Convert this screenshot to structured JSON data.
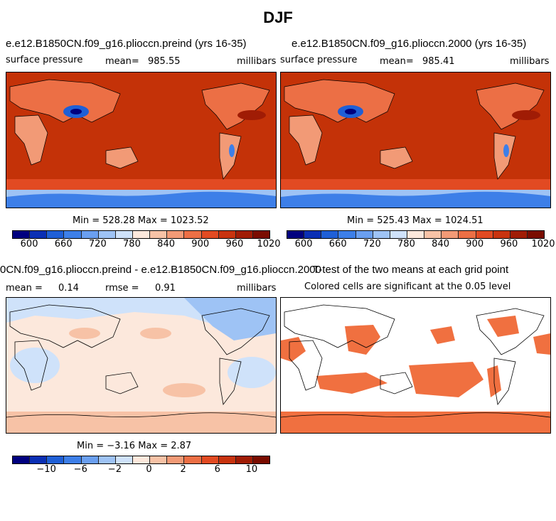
{
  "figure_title": "DJF",
  "chart_data": [
    {
      "type": "heatmap",
      "title": "e.e12.B1850CN.f09_g16.plioccn.preind (yrs 16-35)",
      "variable": "surface pressure",
      "mean_label": "mean=",
      "mean": "985.55",
      "units": "millibars",
      "stats": "Min = 528.28 Max = 1023.52",
      "min": 528.28,
      "max": 1023.52,
      "colorbar_ticks": [
        "600",
        "660",
        "720",
        "780",
        "840",
        "900",
        "960",
        "1020"
      ]
    },
    {
      "type": "heatmap",
      "title": "e.e12.B1850CN.f09_g16.plioccn.2000 (yrs 16-35)",
      "variable": "surface pressure",
      "mean_label": "mean=",
      "mean": "985.41",
      "units": "millibars",
      "stats": "Min = 525.43 Max = 1024.51",
      "min": 525.43,
      "max": 1024.51,
      "colorbar_ticks": [
        "600",
        "660",
        "720",
        "780",
        "840",
        "900",
        "960",
        "1020"
      ]
    },
    {
      "type": "heatmap",
      "title": "0CN.f09_g16.plioccn.preind - e.e12.B1850CN.f09_g16.plioccn.2000",
      "mean_label": "mean =",
      "mean": "0.14",
      "rmse_label": "rmse =",
      "rmse": "0.91",
      "units": "millibars",
      "stats": "Min = −3.16 Max = 2.87",
      "min": -3.16,
      "max": 2.87,
      "colorbar_ticks": [
        "−10",
        "−6",
        "−2",
        "0",
        "2",
        "6",
        "10"
      ]
    },
    {
      "type": "heatmap",
      "title": "T-test of the two means at each grid point",
      "subtitle": "Colored cells are significant at the 0.05 level"
    }
  ],
  "colors": {
    "abs_scale": [
      "#00007f",
      "#0a2fb4",
      "#1f5fd6",
      "#3d7fe8",
      "#6a9ff0",
      "#9ec3f5",
      "#cfe2fa",
      "#fce8dc",
      "#f7c2a6",
      "#f29a76",
      "#ec6f45",
      "#e24a22",
      "#c8330f",
      "#a01c05",
      "#7a0c00"
    ],
    "diff_scale": [
      "#00007f",
      "#0a2fb4",
      "#1f5fd6",
      "#3d7fe8",
      "#6a9ff0",
      "#9ec3f5",
      "#cfe2fa",
      "#fce8dc",
      "#f7c2a6",
      "#f29a76",
      "#ec6f45",
      "#e24a22",
      "#c8330f",
      "#a01c05",
      "#7a0c00"
    ],
    "ocean_abs": "#c43208",
    "ocean_diff": "#fce8dc",
    "sig": "#f07040"
  }
}
